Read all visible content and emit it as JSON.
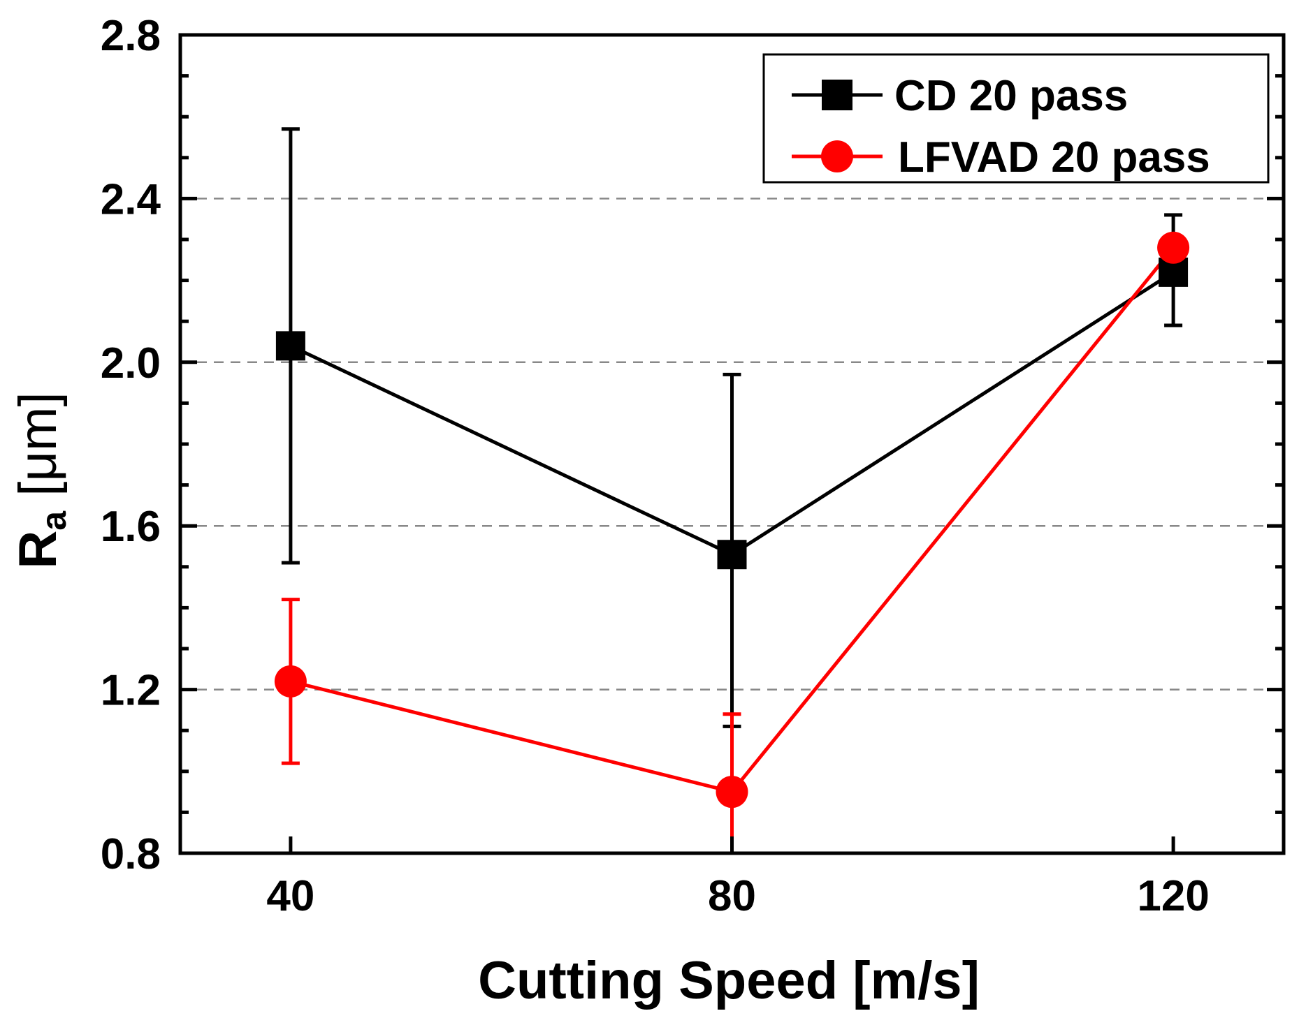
{
  "chart_data": {
    "type": "line",
    "x": [
      40,
      80,
      120
    ],
    "xlabel": "Cutting Speed [m/s]",
    "ylabel_main": "R",
    "ylabel_sub": "a",
    "ylabel_unit": " [μm]",
    "xlim": [
      30,
      130
    ],
    "ylim": [
      0.8,
      2.8
    ],
    "xticks": [
      "40",
      "80",
      "120"
    ],
    "xtick_values": [
      40,
      80,
      120
    ],
    "yticks": [
      "0.8",
      "1.2",
      "1.6",
      "2.0",
      "2.4",
      "2.8"
    ],
    "ytick_values": [
      0.8,
      1.2,
      1.6,
      2.0,
      2.4,
      2.8
    ],
    "grid": "horizontal dashed at major ticks",
    "legend_position": "top-right",
    "series": [
      {
        "name": "CD 20 pass",
        "color": "#000000",
        "marker": "square",
        "values": [
          2.04,
          1.53,
          2.22
        ],
        "err_low": [
          1.51,
          1.11,
          2.09
        ],
        "err_high": [
          2.57,
          1.97,
          2.36
        ]
      },
      {
        "name": "LFVAD 20 pass",
        "color": "#ff0000",
        "marker": "circle",
        "values": [
          1.22,
          0.95,
          2.28
        ],
        "err_low": [
          1.02,
          0.8,
          2.28
        ],
        "err_high": [
          1.42,
          1.14,
          2.28
        ]
      }
    ]
  }
}
